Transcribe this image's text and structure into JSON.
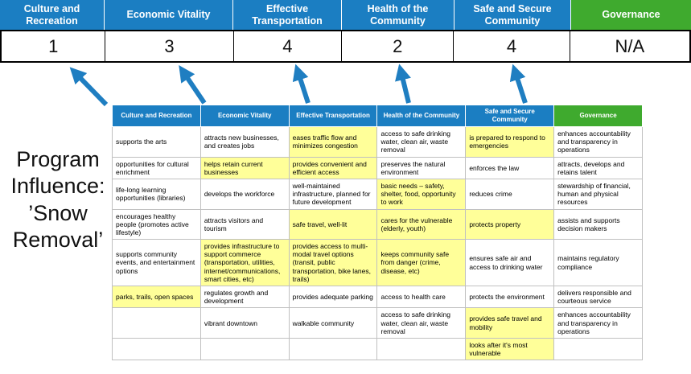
{
  "program": {
    "label": "Program Influence: ’Snow Removal’"
  },
  "colors": {
    "header_blue": "#1b7ec2",
    "header_green": "#3faa2e",
    "highlight_yellow": "#ffff99",
    "arrow_blue": "#1f7ec1",
    "score_border": "#000000"
  },
  "scoreboard": {
    "headers": [
      {
        "label": "Culture and Recreation",
        "color": "#1b7ec2"
      },
      {
        "label": "Economic Vitality",
        "color": "#1b7ec2"
      },
      {
        "label": "Effective Transportation",
        "color": "#1b7ec2"
      },
      {
        "label": "Health of the Community",
        "color": "#1b7ec2"
      },
      {
        "label": "Safe and Secure Community",
        "color": "#1b7ec2"
      },
      {
        "label": "Governance",
        "color": "#3faa2e"
      }
    ],
    "scores": [
      "1",
      "3",
      "4",
      "2",
      "4",
      "N/A"
    ]
  },
  "matrix": {
    "headers": [
      "Culture and Recreation",
      "Economic Vitality",
      "Effective Transportation",
      "Health of the Community",
      "Safe and Secure Community",
      "Governance"
    ],
    "rows": [
      [
        {
          "text": "supports the arts",
          "highlight": false
        },
        {
          "text": "attracts new businesses, and creates jobs",
          "highlight": false
        },
        {
          "text": "eases traffic flow and minimizes congestion",
          "highlight": true
        },
        {
          "text": "access to safe drinking water, clean air, waste removal",
          "highlight": false
        },
        {
          "text": "is prepared to respond to emergencies",
          "highlight": true
        },
        {
          "text": "enhances accountability and transparency in operations",
          "highlight": false
        }
      ],
      [
        {
          "text": "opportunities for cultural enrichment",
          "highlight": false
        },
        {
          "text": "helps retain current businesses",
          "highlight": true
        },
        {
          "text": "provides convenient and efficient access",
          "highlight": true
        },
        {
          "text": "preserves the natural environment",
          "highlight": false
        },
        {
          "text": "enforces the law",
          "highlight": false
        },
        {
          "text": "attracts, develops and retains talent",
          "highlight": false
        }
      ],
      [
        {
          "text": "life-long learning opportunities (libraries)",
          "highlight": false
        },
        {
          "text": "develops the workforce",
          "highlight": false
        },
        {
          "text": "well-maintained infrastructure, planned for future development",
          "highlight": false
        },
        {
          "text": "basic needs – safety, shelter, food, opportunity to work",
          "highlight": true
        },
        {
          "text": "reduces crime",
          "highlight": false
        },
        {
          "text": "stewardship of financial, human and physical resources",
          "highlight": false
        }
      ],
      [
        {
          "text": "encourages healthy people (promotes active lifestyle)",
          "highlight": false
        },
        {
          "text": "attracts visitors and tourism",
          "highlight": false
        },
        {
          "text": "safe travel, well-lit",
          "highlight": true
        },
        {
          "text": "cares for the vulnerable (elderly, youth)",
          "highlight": true
        },
        {
          "text": "protects property",
          "highlight": true
        },
        {
          "text": "assists and supports decision makers",
          "highlight": false
        }
      ],
      [
        {
          "text": "supports community events, and entertainment options",
          "highlight": false
        },
        {
          "text": "provides infrastructure to support commerce (transportation, utilities, internet/communications, smart cities, etc)",
          "highlight": true
        },
        {
          "text": "provides access to multi-modal travel options (transit, public transportation, bike lanes, trails)",
          "highlight": true
        },
        {
          "text": "keeps community safe from danger (crime, disease, etc)",
          "highlight": true
        },
        {
          "text": "ensures safe air and access to drinking water",
          "highlight": false
        },
        {
          "text": "maintains regulatory compliance",
          "highlight": false
        }
      ],
      [
        {
          "text": "parks, trails, open spaces",
          "highlight": true
        },
        {
          "text": "regulates growth and development",
          "highlight": false
        },
        {
          "text": "provides adequate parking",
          "highlight": false
        },
        {
          "text": "access to health care",
          "highlight": false
        },
        {
          "text": "protects the environment",
          "highlight": false
        },
        {
          "text": "delivers responsible and courteous service",
          "highlight": false
        }
      ],
      [
        {
          "text": "",
          "highlight": false
        },
        {
          "text": "vibrant downtown",
          "highlight": false
        },
        {
          "text": "walkable community",
          "highlight": false
        },
        {
          "text": "access to safe drinking water, clean air, waste removal",
          "highlight": false
        },
        {
          "text": "provides safe travel and mobility",
          "highlight": true
        },
        {
          "text": "enhances accountability and transparency in operations",
          "highlight": false
        }
      ],
      [
        {
          "text": "",
          "highlight": false
        },
        {
          "text": "",
          "highlight": false
        },
        {
          "text": "",
          "highlight": false
        },
        {
          "text": "",
          "highlight": false
        },
        {
          "text": "looks after it's most vulnerable",
          "highlight": true
        },
        {
          "text": "",
          "highlight": false
        }
      ]
    ]
  }
}
